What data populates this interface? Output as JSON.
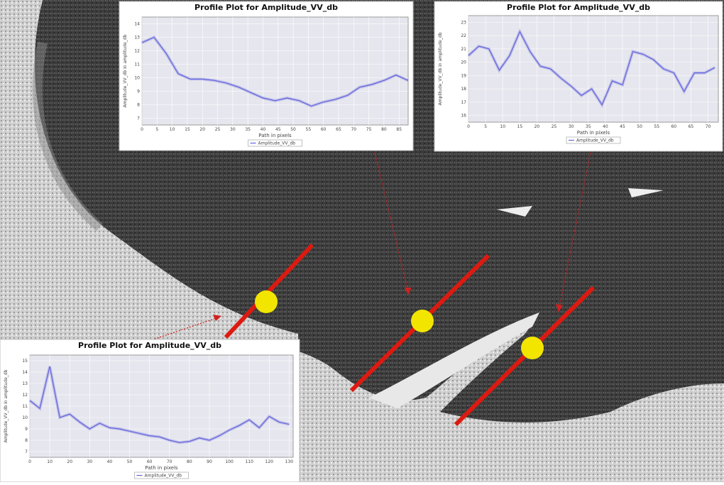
{
  "chart_data": [
    {
      "type": "line",
      "title": "Profile Plot for Amplitude_VV_db",
      "x_label": "Path in pixels",
      "y_label": "Amplitude_VV_db in amplitude_db",
      "x": [
        0,
        4,
        8,
        12,
        16,
        20,
        24,
        28,
        32,
        36,
        40,
        44,
        48,
        52,
        56,
        60,
        64,
        68,
        72,
        76,
        80,
        84,
        88
      ],
      "series": [
        {
          "name": "Amplitude_VV_db",
          "color": "#6464dc",
          "values": [
            12.6,
            13.0,
            11.8,
            10.3,
            9.9,
            9.9,
            9.8,
            9.6,
            9.3,
            8.9,
            8.5,
            8.3,
            8.5,
            8.3,
            7.9,
            8.2,
            8.4,
            8.7,
            9.3,
            9.5,
            9.8,
            10.2,
            9.8
          ]
        }
      ],
      "xlim": [
        0,
        88
      ],
      "xticks": [
        0,
        5,
        10,
        15,
        20,
        25,
        30,
        35,
        40,
        45,
        50,
        55,
        60,
        65,
        70,
        75,
        80,
        85
      ],
      "ylim": [
        6.5,
        14.5
      ],
      "yticks": [
        7,
        8,
        9,
        10,
        11,
        12,
        13,
        14
      ],
      "grid": true
    },
    {
      "type": "line",
      "title": "Profile Plot for Amplitude_VV_db",
      "x_label": "Path in pixels",
      "y_label": "Amplitude_VV_db in amplitude_db",
      "x": [
        0,
        3,
        6,
        9,
        12,
        15,
        18,
        21,
        24,
        27,
        30,
        33,
        36,
        39,
        42,
        45,
        48,
        51,
        54,
        57,
        60,
        63,
        66,
        69,
        72
      ],
      "series": [
        {
          "name": "Amplitude_VV_db",
          "color": "#6464dc",
          "values": [
            20.5,
            21.2,
            21.0,
            19.4,
            20.5,
            22.3,
            20.8,
            19.7,
            19.5,
            18.8,
            18.2,
            17.5,
            18.0,
            16.8,
            18.6,
            18.3,
            20.8,
            20.6,
            20.2,
            19.5,
            19.2,
            17.8,
            19.2,
            19.2,
            19.6
          ]
        }
      ],
      "xlim": [
        0,
        73
      ],
      "xticks": [
        0,
        5,
        10,
        15,
        20,
        25,
        30,
        35,
        40,
        45,
        50,
        55,
        60,
        65,
        70
      ],
      "ylim": [
        15.5,
        23.5
      ],
      "yticks": [
        16,
        17,
        18,
        19,
        20,
        21,
        22,
        23
      ],
      "grid": true
    },
    {
      "type": "line",
      "title": "Profile Plot for Amplitude_VV_db",
      "x_label": "Path in pixels",
      "y_label": "Amplitude_VV_db in amplitude_db",
      "x": [
        0,
        5,
        10,
        15,
        20,
        25,
        30,
        35,
        40,
        45,
        50,
        55,
        60,
        65,
        70,
        75,
        80,
        85,
        90,
        95,
        100,
        105,
        110,
        115,
        120,
        125,
        130
      ],
      "series": [
        {
          "name": "Amplitude_VV_db",
          "color": "#6464dc",
          "values": [
            11.5,
            10.8,
            14.5,
            10.0,
            10.3,
            9.6,
            9.0,
            9.5,
            9.1,
            9.0,
            8.8,
            8.6,
            8.4,
            8.3,
            8.0,
            7.8,
            7.9,
            8.2,
            8.0,
            8.4,
            8.9,
            9.3,
            9.8,
            9.1,
            10.1,
            9.6,
            9.4
          ]
        }
      ],
      "xlim": [
        0,
        132
      ],
      "xticks": [
        0,
        10,
        20,
        30,
        40,
        50,
        60,
        70,
        80,
        90,
        100,
        110,
        120,
        130
      ],
      "ylim": [
        6.5,
        15.5
      ],
      "yticks": [
        7,
        8,
        9,
        10,
        11,
        12,
        13,
        14,
        15
      ],
      "grid": true
    }
  ]
}
